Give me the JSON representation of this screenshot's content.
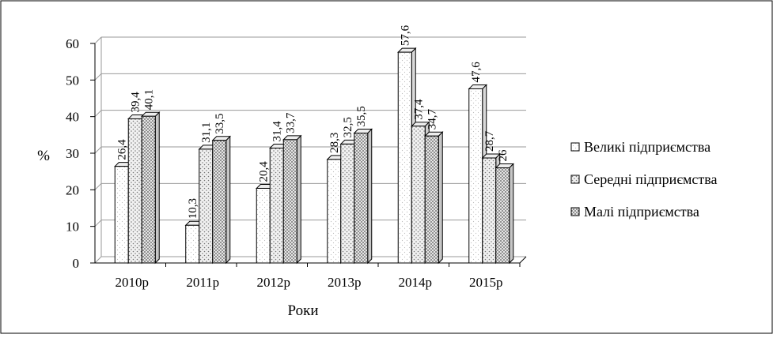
{
  "chart_data": {
    "type": "bar",
    "categories": [
      "2010р",
      "2011р",
      "2012р",
      "2013р",
      "2014р",
      "2015р"
    ],
    "series": [
      {
        "name": "Великі підприємства",
        "values": [
          26.4,
          10.3,
          20.4,
          28.3,
          57.6,
          47.6
        ],
        "labels": [
          "26,4",
          "10,3",
          "20,4",
          "28,3",
          "57,6",
          "47,6"
        ]
      },
      {
        "name": "Середні підприємства",
        "values": [
          39.4,
          31.1,
          31.4,
          32.5,
          37.4,
          28.7
        ],
        "labels": [
          "39,4",
          "31,1",
          "31,4",
          "32,5",
          "37,4",
          "28,7"
        ]
      },
      {
        "name": "Малі підприємства",
        "values": [
          40.1,
          33.5,
          33.7,
          35.5,
          34.7,
          26.0
        ],
        "labels": [
          "40,1",
          "33,5",
          "33,7",
          "35,5",
          "34,7",
          "26"
        ]
      }
    ],
    "y_ticks": [
      "0",
      "10",
      "20",
      "30",
      "40",
      "50",
      "60"
    ],
    "ylim": [
      0,
      60
    ],
    "ylabel": "%",
    "xlabel": "Роки",
    "title": "",
    "grid": true,
    "legend_position": "right",
    "three_d": true
  }
}
